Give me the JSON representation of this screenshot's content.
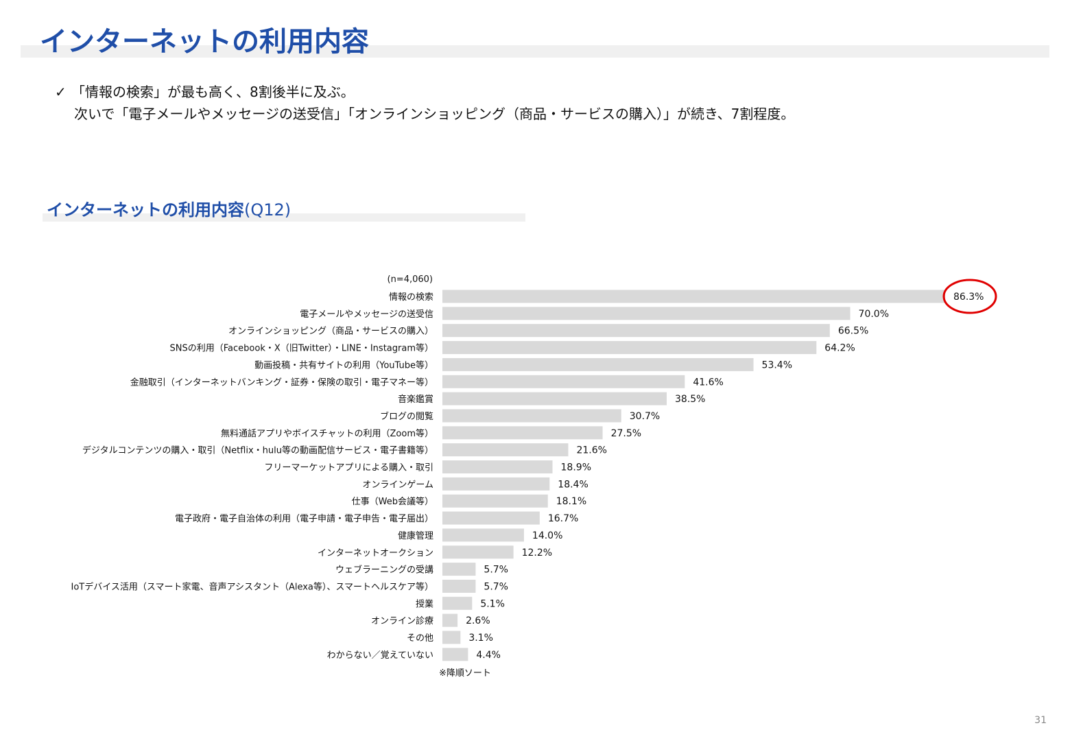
{
  "header": {
    "title": "インターネットの利用内容"
  },
  "summary": {
    "check_icon": "check-icon",
    "line1": "「情報の検索」が最も高く、8割後半に及ぶ。",
    "line2": "次いで「電子メールやメッセージの送受信」「オンラインショッピング（商品・サービスの購入）」が続き、7割程度。"
  },
  "chart_section": {
    "title": "インターネットの利用内容",
    "question_code": "(Q12)"
  },
  "chart_data": {
    "type": "bar",
    "orientation": "horizontal",
    "sample_note": "(n=4,060)",
    "sort_note": "※降順ソート",
    "unit": "%",
    "bar_color": "#d9d9d9",
    "highlight_color": "#e00000",
    "highlight_index": 0,
    "xlim": [
      0,
      86.3
    ],
    "categories": [
      "情報の検索",
      "電子メールやメッセージの送受信",
      "オンラインショッピング（商品・サービスの購入）",
      "SNSの利用（Facebook・X（旧Twitter）・LINE・Instagram等）",
      "動画投稿・共有サイトの利用（YouTube等）",
      "金融取引（インターネットバンキング・証券・保険の取引・電子マネー等）",
      "音楽鑑賞",
      "ブログの閲覧",
      "無料通話アプリやボイスチャットの利用（Zoom等）",
      "デジタルコンテンツの購入・取引（Netflix・hulu等の動画配信サービス・電子書籍等）",
      "フリーマーケットアプリによる購入・取引",
      "オンラインゲーム",
      "仕事（Web会議等）",
      "電子政府・電子自治体の利用（電子申請・電子申告・電子届出）",
      "健康管理",
      "インターネットオークション",
      "ウェブラーニングの受講",
      "IoTデバイス活用（スマート家電、音声アシスタント（Alexa等）、スマートヘルスケア等）",
      "授業",
      "オンライン診療",
      "その他",
      "わからない／覚えていない"
    ],
    "values": [
      86.3,
      70.0,
      66.5,
      64.2,
      53.4,
      41.6,
      38.5,
      30.7,
      27.5,
      21.6,
      18.9,
      18.4,
      18.1,
      16.7,
      14.0,
      12.2,
      5.7,
      5.7,
      5.1,
      2.6,
      3.1,
      4.4
    ],
    "value_labels": [
      "86.3%",
      "70.0%",
      "66.5%",
      "64.2%",
      "53.4%",
      "41.6%",
      "38.5%",
      "30.7%",
      "27.5%",
      "21.6%",
      "18.9%",
      "18.4%",
      "18.1%",
      "16.7%",
      "14.0%",
      "12.2%",
      "5.7%",
      "5.7%",
      "5.1%",
      "2.6%",
      "3.1%",
      "4.4%"
    ]
  },
  "footer": {
    "page_number": "31"
  }
}
